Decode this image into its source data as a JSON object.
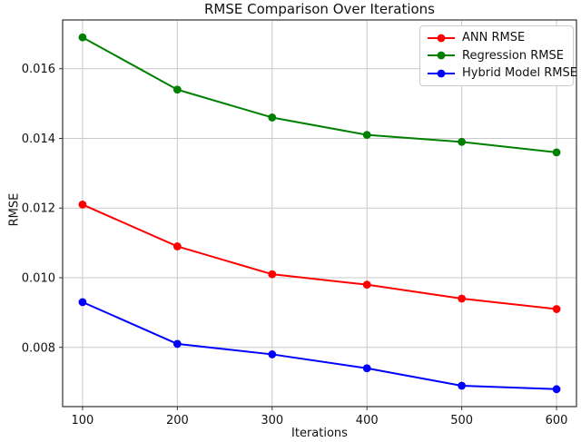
{
  "chart_data": {
    "type": "line",
    "title": "RMSE Comparison Over Iterations",
    "xlabel": "Iterations",
    "ylabel": "RMSE",
    "x": [
      100,
      200,
      300,
      400,
      500,
      600
    ],
    "series": [
      {
        "name": "ANN RMSE",
        "color": "#ff0000",
        "marker": "circle",
        "values": [
          0.0121,
          0.0109,
          0.0101,
          0.0098,
          0.0094,
          0.0091
        ]
      },
      {
        "name": "Regression RMSE",
        "color": "#008000",
        "marker": "circle",
        "values": [
          0.0169,
          0.0154,
          0.0146,
          0.0141,
          0.0139,
          0.0136
        ]
      },
      {
        "name": "Hybrid Model RMSE",
        "color": "#0000ff",
        "marker": "circle",
        "values": [
          0.0093,
          0.0081,
          0.0078,
          0.0074,
          0.0069,
          0.0068
        ]
      }
    ],
    "xlim": [
      79,
      621
    ],
    "ylim": [
      0.0063,
      0.0174
    ],
    "xticks": [
      100,
      200,
      300,
      400,
      500,
      600
    ],
    "xtick_labels": [
      "100",
      "200",
      "300",
      "400",
      "500",
      "600"
    ],
    "yticks": [
      0.008,
      0.01,
      0.012,
      0.014,
      0.016
    ],
    "ytick_labels": [
      "0.008",
      "0.010",
      "0.012",
      "0.014",
      "0.016"
    ],
    "grid": true,
    "legend": {
      "position": "upper right",
      "entries": [
        "ANN RMSE",
        "Regression RMSE",
        "Hybrid Model RMSE"
      ]
    },
    "colors": {
      "grid": "#c9c9c9",
      "spine": "#333333",
      "text": "#111111",
      "background": "#ffffff"
    }
  }
}
